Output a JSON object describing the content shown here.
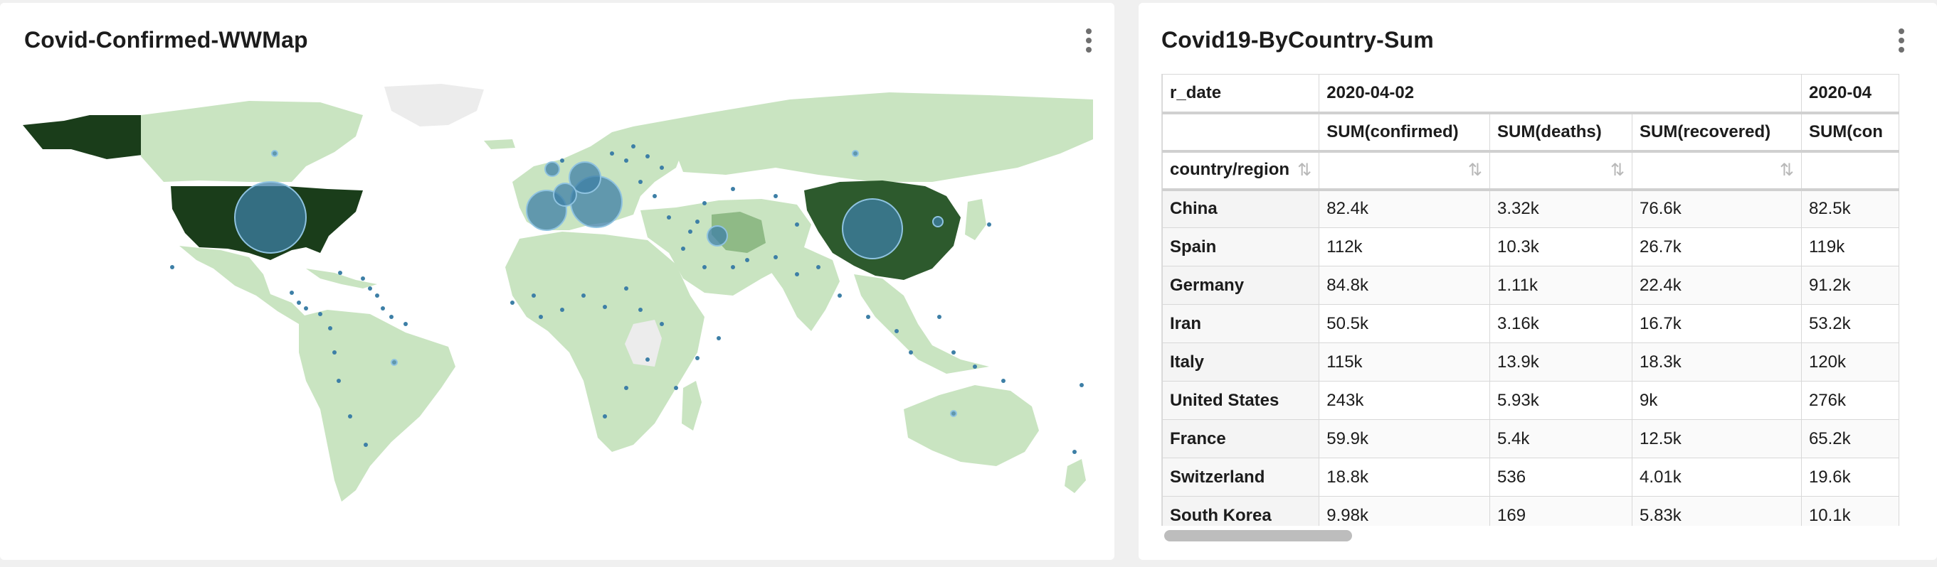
{
  "map_panel": {
    "title": "Covid-Confirmed-WWMap",
    "menu_icon": "kebab-menu-icon"
  },
  "table_panel": {
    "title": "Covid19-ByCountry-Sum",
    "menu_icon": "kebab-menu-icon",
    "header": {
      "date_label": "r_date",
      "dates": [
        "2020-04-02",
        "2020-04"
      ],
      "metrics": [
        "SUM(confirmed)",
        "SUM(deaths)",
        "SUM(recovered)",
        "SUM(con"
      ],
      "row_label": "country/region"
    },
    "rows": [
      {
        "country": "China",
        "confirmed": "82.4k",
        "deaths": "3.32k",
        "recovered": "76.6k",
        "next": "82.5k"
      },
      {
        "country": "Spain",
        "confirmed": "112k",
        "deaths": "10.3k",
        "recovered": "26.7k",
        "next": "119k"
      },
      {
        "country": "Germany",
        "confirmed": "84.8k",
        "deaths": "1.11k",
        "recovered": "22.4k",
        "next": "91.2k"
      },
      {
        "country": "Iran",
        "confirmed": "50.5k",
        "deaths": "3.16k",
        "recovered": "16.7k",
        "next": "53.2k"
      },
      {
        "country": "Italy",
        "confirmed": "115k",
        "deaths": "13.9k",
        "recovered": "18.3k",
        "next": "120k"
      },
      {
        "country": "United States",
        "confirmed": "243k",
        "deaths": "5.93k",
        "recovered": "9k",
        "next": "276k"
      },
      {
        "country": "France",
        "confirmed": "59.9k",
        "deaths": "5.4k",
        "recovered": "12.5k",
        "next": "65.2k"
      },
      {
        "country": "Switzerland",
        "confirmed": "18.8k",
        "deaths": "536",
        "recovered": "4.01k",
        "next": "19.6k"
      },
      {
        "country": "South Korea",
        "confirmed": "9.98k",
        "deaths": "169",
        "recovered": "5.83k",
        "next": "10.1k"
      }
    ]
  },
  "colors": {
    "land_light": "#c9e4c1",
    "land_mid": "#8fba86",
    "land_dark": "#2d5a2d",
    "land_darkest": "#1a3d1a",
    "land_nodata": "#ececec",
    "bubble": "#3d7fa6"
  }
}
